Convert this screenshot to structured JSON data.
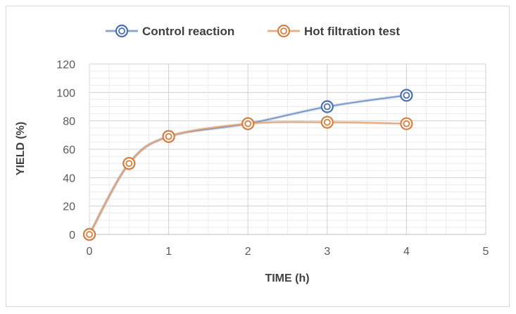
{
  "chart_data": {
    "type": "line",
    "title": "",
    "xlabel": "TIME (h)",
    "ylabel": "YIELD (%)",
    "xlim": [
      0,
      5
    ],
    "ylim": [
      0,
      120
    ],
    "x_ticks": [
      0,
      1,
      2,
      3,
      4,
      5
    ],
    "y_ticks": [
      0,
      20,
      40,
      60,
      80,
      100,
      120
    ],
    "grid": true,
    "legend_position": "top",
    "series": [
      {
        "name": "Control reaction",
        "color": "#6f90c4",
        "marker_color": "#4a6fb0",
        "x": [
          0,
          0.5,
          1,
          2,
          3,
          4
        ],
        "y": [
          0,
          50,
          69,
          78,
          90,
          98
        ]
      },
      {
        "name": "Hot filtration test",
        "color": "#e0a070",
        "marker_color": "#d98040",
        "x": [
          0,
          0.5,
          1,
          2,
          3,
          4
        ],
        "y": [
          0,
          50,
          69,
          78,
          79,
          78
        ]
      }
    ]
  }
}
